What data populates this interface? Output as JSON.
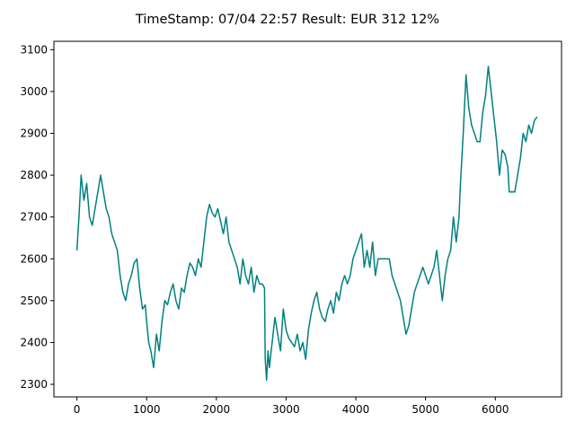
{
  "chart_data": {
    "type": "line",
    "title": "TimeStamp: 07/04 22:57 Result: EUR 312 12%",
    "xlabel": "",
    "ylabel": "",
    "xlim": [
      -330,
      6950
    ],
    "ylim": [
      2270,
      3120
    ],
    "x_ticks": [
      0,
      1000,
      2000,
      3000,
      4000,
      5000,
      6000
    ],
    "x_tick_labels": [
      "0",
      "1000",
      "2000",
      "3000",
      "4000",
      "5000",
      "6000"
    ],
    "y_ticks": [
      2300,
      2400,
      2500,
      2600,
      2700,
      2800,
      2900,
      3000,
      3100
    ],
    "y_tick_labels": [
      "2300",
      "2400",
      "2500",
      "2600",
      "2700",
      "2800",
      "2900",
      "3000",
      "3100"
    ],
    "grid": false,
    "legend": false,
    "color": "#008080",
    "series": [
      {
        "x": [
          0,
          30,
          60,
          100,
          140,
          180,
          220,
          260,
          300,
          340,
          380,
          420,
          460,
          500,
          540,
          580,
          620,
          660,
          700,
          740,
          780,
          820,
          860,
          900,
          940,
          980,
          1000,
          1030,
          1060,
          1100,
          1140,
          1180,
          1220,
          1260,
          1300,
          1340,
          1380,
          1420,
          1460,
          1500,
          1540,
          1580,
          1620,
          1660,
          1700,
          1740,
          1780,
          1820,
          1860,
          1900,
          1940,
          1980,
          2020,
          2060,
          2100,
          2140,
          2180,
          2220,
          2260,
          2300,
          2340,
          2380,
          2420,
          2460,
          2500,
          2540,
          2580,
          2620,
          2660,
          2690,
          2700,
          2720,
          2740,
          2760,
          2800,
          2840,
          2880,
          2920,
          2960,
          3000,
          3040,
          3080,
          3120,
          3160,
          3200,
          3240,
          3280,
          3320,
          3360,
          3400,
          3440,
          3480,
          3520,
          3560,
          3600,
          3640,
          3680,
          3720,
          3760,
          3800,
          3840,
          3880,
          3920,
          3960,
          4000,
          4040,
          4080,
          4120,
          4160,
          4200,
          4240,
          4280,
          4320,
          4360,
          4400,
          4440,
          4480,
          4520,
          4560,
          4600,
          4640,
          4680,
          4720,
          4760,
          4800,
          4840,
          4880,
          4920,
          4960,
          5000,
          5040,
          5080,
          5120,
          5160,
          5200,
          5240,
          5280,
          5320,
          5360,
          5400,
          5440,
          5480,
          5500,
          5540,
          5580,
          5620,
          5660,
          5700,
          5740,
          5780,
          5820,
          5860,
          5900,
          5940,
          5980,
          6020,
          6060,
          6100,
          6140,
          6180,
          6200,
          6240,
          6280,
          6320,
          6360,
          6400,
          6440,
          6480,
          6520,
          6560,
          6600
        ],
        "y": [
          2620,
          2700,
          2800,
          2740,
          2780,
          2700,
          2680,
          2720,
          2760,
          2800,
          2760,
          2720,
          2700,
          2660,
          2640,
          2620,
          2560,
          2520,
          2500,
          2540,
          2560,
          2590,
          2600,
          2530,
          2480,
          2490,
          2450,
          2400,
          2380,
          2340,
          2420,
          2380,
          2450,
          2500,
          2490,
          2520,
          2540,
          2500,
          2480,
          2530,
          2520,
          2560,
          2590,
          2580,
          2560,
          2600,
          2580,
          2640,
          2700,
          2730,
          2710,
          2700,
          2720,
          2690,
          2660,
          2700,
          2640,
          2620,
          2600,
          2580,
          2540,
          2600,
          2560,
          2540,
          2580,
          2520,
          2560,
          2540,
          2540,
          2530,
          2360,
          2310,
          2380,
          2340,
          2400,
          2460,
          2420,
          2380,
          2480,
          2430,
          2410,
          2400,
          2390,
          2420,
          2380,
          2400,
          2360,
          2430,
          2470,
          2500,
          2520,
          2480,
          2460,
          2450,
          2480,
          2500,
          2470,
          2520,
          2500,
          2540,
          2560,
          2540,
          2560,
          2600,
          2620,
          2640,
          2660,
          2580,
          2620,
          2580,
          2640,
          2560,
          2600,
          2600,
          2600,
          2600,
          2600,
          2560,
          2540,
          2520,
          2500,
          2460,
          2420,
          2440,
          2480,
          2520,
          2540,
          2560,
          2580,
          2560,
          2540,
          2560,
          2580,
          2620,
          2560,
          2500,
          2560,
          2600,
          2620,
          2700,
          2640,
          2700,
          2780,
          2900,
          3040,
          2960,
          2920,
          2900,
          2880,
          2880,
          2950,
          2990,
          3060,
          3000,
          2940,
          2880,
          2800,
          2860,
          2850,
          2820,
          2760,
          2760,
          2760,
          2800,
          2840,
          2900,
          2880,
          2920,
          2900,
          2930,
          2940
        ]
      }
    ]
  }
}
